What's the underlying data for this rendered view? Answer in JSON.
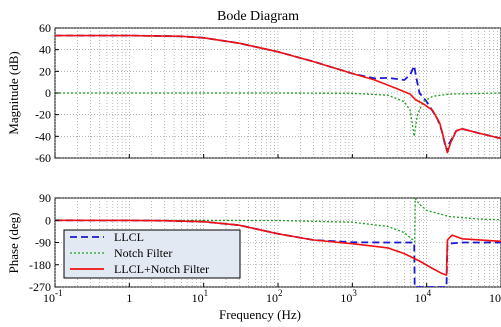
{
  "colors": {
    "llcl": "#1a1ad2",
    "notch": "#1e9e1e",
    "combined": "#ee1111",
    "legend_bg": "#e3e9f3"
  },
  "chart_data": {
    "type": "line",
    "title": "Bode Diagram",
    "xlabel": "Frequency  (Hz)",
    "xscale": "log",
    "xlim": [
      0.1,
      100000
    ],
    "x_ticks": [
      {
        "value": 0.1,
        "base": "10",
        "exp": "-1"
      },
      {
        "value": 1,
        "base": "1",
        "exp": ""
      },
      {
        "value": 10,
        "base": "10",
        "exp": "1"
      },
      {
        "value": 100,
        "base": "10",
        "exp": "2"
      },
      {
        "value": 1000,
        "base": "10",
        "exp": "3"
      },
      {
        "value": 10000,
        "base": "10",
        "exp": "4"
      },
      {
        "value": 100000,
        "base": "10",
        "exp": "5"
      }
    ],
    "grid": true,
    "legend_position": "lower-left of phase panel",
    "legend": [
      "LLCL",
      "Notch Filter",
      "LLCL+Notch Filter"
    ],
    "magnitude": {
      "ylabel": "Magnitude (dB)",
      "ylim": [
        -60,
        60
      ],
      "yticks": [
        "60",
        "40",
        "20",
        "0",
        "-20",
        "-40",
        "-60"
      ],
      "series": [
        {
          "name": "LLCL",
          "style": "dashed",
          "points": [
            [
              0.1,
              53
            ],
            [
              1,
              53
            ],
            [
              5,
              52.3
            ],
            [
              10,
              51
            ],
            [
              30,
              46
            ],
            [
              100,
              38
            ],
            [
              300,
              29
            ],
            [
              1000,
              18
            ],
            [
              2000,
              13.5
            ],
            [
              3000,
              14
            ],
            [
              5000,
              12
            ],
            [
              6000,
              17
            ],
            [
              6800,
              25
            ],
            [
              7200,
              15
            ],
            [
              8000,
              0
            ],
            [
              10000,
              -8
            ],
            [
              14000,
              -24
            ],
            [
              16000,
              -35
            ],
            [
              18000,
              -50
            ],
            [
              19000,
              -54
            ],
            [
              20000,
              -47
            ],
            [
              25000,
              -35
            ],
            [
              30000,
              -33
            ],
            [
              50000,
              -37
            ],
            [
              100000,
              -42
            ]
          ]
        },
        {
          "name": "Notch Filter",
          "style": "dotted",
          "points": [
            [
              0.1,
              0
            ],
            [
              100,
              0
            ],
            [
              1000,
              -0.3
            ],
            [
              3000,
              -2
            ],
            [
              5000,
              -8
            ],
            [
              6000,
              -16
            ],
            [
              6800,
              -40
            ],
            [
              7500,
              -20
            ],
            [
              9000,
              -8
            ],
            [
              12000,
              -3
            ],
            [
              20000,
              -1
            ],
            [
              100000,
              0
            ]
          ]
        },
        {
          "name": "LLCL+Notch Filter",
          "style": "solid",
          "points": [
            [
              0.1,
              53
            ],
            [
              1,
              53
            ],
            [
              5,
              52.3
            ],
            [
              10,
              51
            ],
            [
              30,
              46
            ],
            [
              100,
              38
            ],
            [
              300,
              29
            ],
            [
              1000,
              18
            ],
            [
              2000,
              12
            ],
            [
              4000,
              4
            ],
            [
              6000,
              -1
            ],
            [
              7000,
              -6
            ],
            [
              9000,
              -10
            ],
            [
              12000,
              -16
            ],
            [
              15000,
              -28
            ],
            [
              17000,
              -42
            ],
            [
              19000,
              -55
            ],
            [
              21000,
              -46
            ],
            [
              25000,
              -35
            ],
            [
              30000,
              -33
            ],
            [
              50000,
              -37
            ],
            [
              100000,
              -42
            ]
          ]
        }
      ]
    },
    "phase": {
      "ylabel": "Phase (deg)",
      "ylim": [
        -270,
        90
      ],
      "yticks": [
        "90",
        "0",
        "-90",
        "-180",
        "-270"
      ],
      "series": [
        {
          "name": "LLCL",
          "style": "dashed",
          "points": [
            [
              0.1,
              0
            ],
            [
              1,
              -0.5
            ],
            [
              3,
              -2
            ],
            [
              10,
              -6
            ],
            [
              30,
              -20
            ],
            [
              100,
              -55
            ],
            [
              300,
              -80
            ],
            [
              1000,
              -89
            ],
            [
              3000,
              -90
            ],
            [
              6000,
              -90
            ],
            [
              6800,
              -90
            ],
            [
              6900,
              -270
            ],
            [
              18500,
              -270
            ],
            [
              19000,
              -95
            ],
            [
              30000,
              -90
            ],
            [
              100000,
              -90
            ]
          ]
        },
        {
          "name": "Notch Filter",
          "style": "dotted",
          "points": [
            [
              0.1,
              0
            ],
            [
              100,
              -1
            ],
            [
              1000,
              -8
            ],
            [
              3000,
              -25
            ],
            [
              5000,
              -50
            ],
            [
              6500,
              -80
            ],
            [
              6900,
              -88
            ],
            [
              7000,
              88
            ],
            [
              8000,
              65
            ],
            [
              10000,
              40
            ],
            [
              20000,
              15
            ],
            [
              50000,
              5
            ],
            [
              100000,
              2
            ]
          ]
        },
        {
          "name": "LLCL+Notch Filter",
          "style": "solid",
          "points": [
            [
              0.1,
              0
            ],
            [
              1,
              -0.5
            ],
            [
              3,
              -2
            ],
            [
              10,
              -6
            ],
            [
              30,
              -20
            ],
            [
              100,
              -55
            ],
            [
              300,
              -80
            ],
            [
              1000,
              -95
            ],
            [
              3000,
              -112
            ],
            [
              5000,
              -135
            ],
            [
              8000,
              -165
            ],
            [
              12000,
              -195
            ],
            [
              16000,
              -215
            ],
            [
              18500,
              -222
            ],
            [
              19000,
              -80
            ],
            [
              22000,
              -60
            ],
            [
              30000,
              -75
            ],
            [
              100000,
              -85
            ]
          ]
        }
      ]
    }
  }
}
